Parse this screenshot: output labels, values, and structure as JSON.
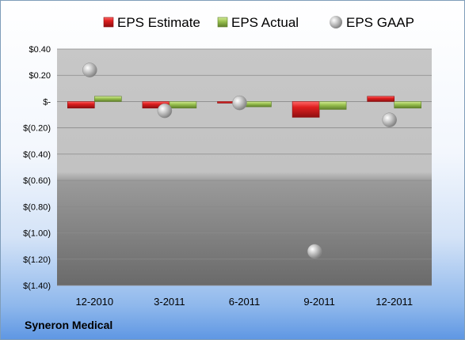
{
  "company_label": "Syneron Medical",
  "chart_data": {
    "type": "bar",
    "categories": [
      "12-2010",
      "3-2011",
      "6-2011",
      "9-2011",
      "12-2011"
    ],
    "series": [
      {
        "name": "EPS Estimate",
        "kind": "bar",
        "color": "#c0181c",
        "values": [
          -0.05,
          -0.05,
          -0.01,
          -0.12,
          0.04
        ]
      },
      {
        "name": "EPS Actual",
        "kind": "bar",
        "color": "#8fb34a",
        "values": [
          0.04,
          -0.05,
          -0.04,
          -0.06,
          -0.05
        ]
      },
      {
        "name": "EPS GAAP",
        "kind": "marker",
        "color": "#a8a8a8",
        "values": [
          0.24,
          -0.07,
          -0.01,
          -1.14,
          -0.14
        ]
      }
    ],
    "y_ticks": [
      0.4,
      0.2,
      0,
      -0.2,
      -0.4,
      -0.6,
      -0.8,
      -1.0,
      -1.2,
      -1.4
    ],
    "y_tick_labels": [
      "$0.40",
      "$0.20",
      "$-",
      "$(0.20)",
      "$(0.40)",
      "$(0.60)",
      "$(0.80)",
      "$(1.00)",
      "$(1.20)",
      "$(1.40)"
    ],
    "ylim": [
      -1.4,
      0.4
    ],
    "grid": true,
    "legend": "top"
  }
}
